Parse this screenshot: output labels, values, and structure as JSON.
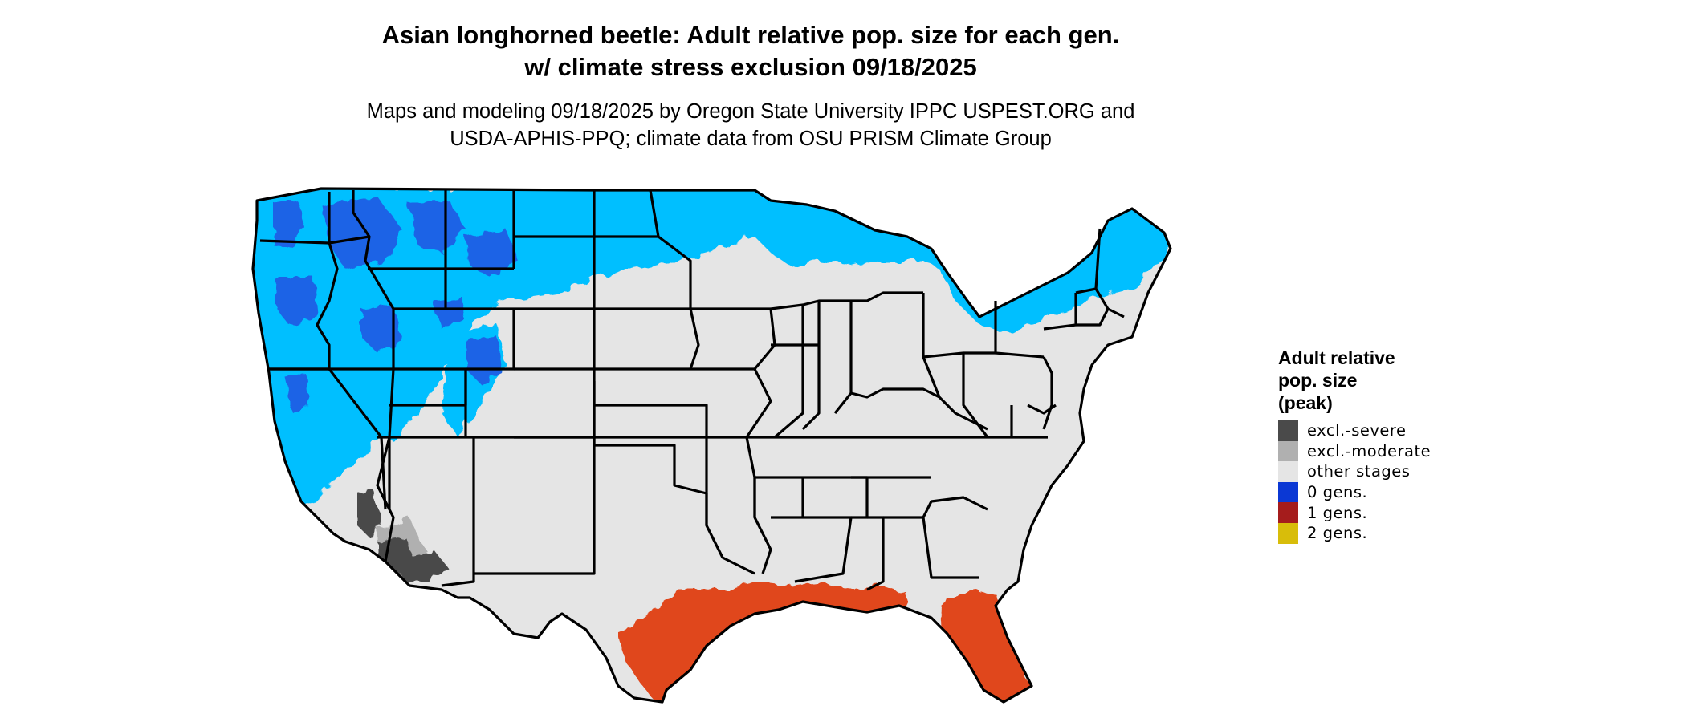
{
  "title": {
    "line1": "Asian longhorned beetle: Adult relative pop. size for each gen.",
    "line2": "w/ climate stress exclusion 09/18/2025"
  },
  "subtitle": {
    "line1": "Maps and modeling 09/18/2025 by Oregon State University IPPC USPEST.ORG and",
    "line2": "USDA-APHIS-PPQ; climate data from OSU PRISM Climate Group"
  },
  "legend": {
    "title_line1": "Adult relative",
    "title_line2": "pop. size",
    "title_line3": "(peak)",
    "items": [
      {
        "label": "excl.-severe",
        "color": "#4a4a4a"
      },
      {
        "label": "excl.-moderate",
        "color": "#b0b0b0"
      },
      {
        "label": "other stages",
        "color": "#e5e5e5"
      },
      {
        "label": "0 gens.",
        "color": "#0b38d4"
      },
      {
        "label": "1 gens.",
        "color": "#a51c1c"
      },
      {
        "label": "2 gens.",
        "color": "#d8bd0a"
      }
    ]
  },
  "map": {
    "region": "contiguous United States",
    "colors": {
      "land": "#e5e5e5",
      "cold_zone": "#00bfff",
      "cold_zone_dark": "#1e64e6",
      "warm_zone": "#e0461b",
      "excluded_severe": "#4a4a4a",
      "excluded_moderate": "#b0b0b0",
      "border": "#000000"
    }
  }
}
